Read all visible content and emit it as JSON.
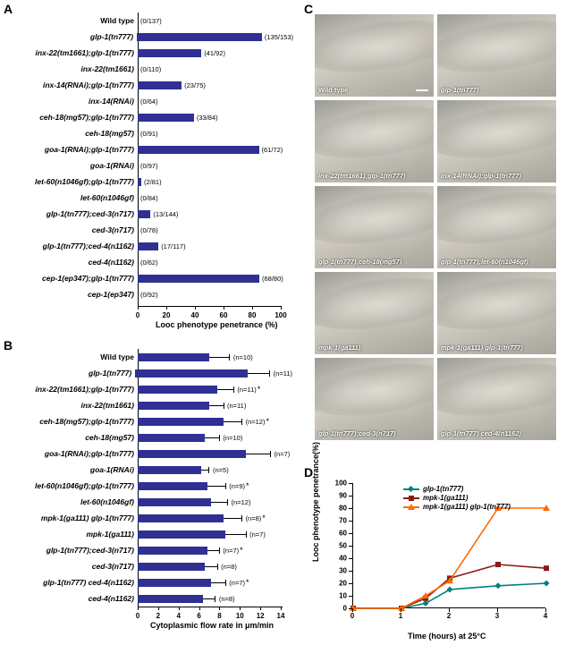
{
  "panel_labels": {
    "A": "A",
    "B": "B",
    "C": "C",
    "D": "D"
  },
  "colors": {
    "bar": "#2e3192",
    "axis": "#000000",
    "bg": "#ffffff",
    "series_glp1": "#008080",
    "series_mpk1": "#8b1a1a",
    "series_double": "#ff6a00"
  },
  "panelA": {
    "x_title": "Looc phenotype penetrance (%)",
    "xlim": [
      0,
      100
    ],
    "xtick_step": 20,
    "bar_color": "#2e3192",
    "rows": [
      {
        "label_html": "<span class='bold'>Wild type</span>",
        "value": 0,
        "count": "(0/137)"
      },
      {
        "label_html": "<span class='italic'>glp-1(tn777)</span>",
        "value": 88,
        "count": "(135/153)"
      },
      {
        "label_html": "<span class='italic'>inx-22(tm1661);glp-1(tn777)</span>",
        "value": 44.5,
        "count": "(41/92)"
      },
      {
        "label_html": "<span class='italic'>inx-22(tm1661)</span>",
        "value": 0,
        "count": "(0/110)"
      },
      {
        "label_html": "<span class='italic'>inx-14(RNAi);glp-1(tn777)</span>",
        "value": 30.7,
        "count": "(23/75)"
      },
      {
        "label_html": "<span class='italic'>inx-14(RNAi)</span>",
        "value": 0,
        "count": "(0/64)"
      },
      {
        "label_html": "<span class='italic'>ceh-18(mg57);glp-1(tn777)</span>",
        "value": 39.3,
        "count": "(33/84)"
      },
      {
        "label_html": "<span class='italic'>ceh-18(mg57)</span>",
        "value": 0,
        "count": "(0/91)"
      },
      {
        "label_html": "<span class='italic'>goa-1(RNAi);glp-1(tn777)</span>",
        "value": 84.7,
        "count": "(61/72)"
      },
      {
        "label_html": "<span class='italic'>goa-1(RNAi)</span>",
        "value": 0,
        "count": "(0/97)"
      },
      {
        "label_html": "<span class='italic'>let-60(n1046gf);glp-1(tn777)</span>",
        "value": 2.5,
        "count": "(2/81)"
      },
      {
        "label_html": "<span class='italic'>let-60(n1046gf)</span>",
        "value": 0,
        "count": "(0/84)"
      },
      {
        "label_html": "<span class='italic'>glp-1(tn777);ced-3(n717)</span>",
        "value": 9,
        "count": "(13/144)"
      },
      {
        "label_html": "<span class='italic'>ced-3(n717)</span>",
        "value": 0,
        "count": "(0/78)"
      },
      {
        "label_html": "<span class='italic'>glp-1(tn777);ced-4(n1162)</span>",
        "value": 14.5,
        "count": "(17/117)"
      },
      {
        "label_html": "<span class='italic'>ced-4(n1162)</span>",
        "value": 0,
        "count": "(0/62)"
      },
      {
        "label_html": "<span class='italic'>cep-1(ep347);glp-1(tn777)</span>",
        "value": 85,
        "count": "(68/80)"
      },
      {
        "label_html": "<span class='italic'>cep-1(ep347)</span>",
        "value": 0,
        "count": "(0/92)"
      }
    ]
  },
  "panelB": {
    "x_title": "Cytoplasmic flow rate in μm/min",
    "xlim": [
      0,
      14
    ],
    "xtick_step": 2,
    "bar_color": "#2e3192",
    "rows": [
      {
        "label_html": "<span class='bold'>Wild type</span>",
        "value": 7.0,
        "err": 2.0,
        "n": "(n=10)",
        "star": ""
      },
      {
        "label_html": "<span class='italic'>glp-1(tn777)</span>",
        "value": 11.2,
        "err": 2.2,
        "n": "(n=11)",
        "star": ""
      },
      {
        "label_html": "<span class='italic'>inx-22(tm1661);glp-1(tn777)</span>",
        "value": 7.8,
        "err": 1.6,
        "n": "(n=11)",
        "star": "*"
      },
      {
        "label_html": "<span class='italic'>inx-22(tm1661)</span>",
        "value": 7.0,
        "err": 1.4,
        "n": "(n=11)",
        "star": ""
      },
      {
        "label_html": "<span class='italic'>ceh-18(mg57);glp-1(tn777)</span>",
        "value": 8.4,
        "err": 1.8,
        "n": "(n=12)",
        "star": "*"
      },
      {
        "label_html": "<span class='italic'>ceh-18(mg57)</span>",
        "value": 6.6,
        "err": 1.4,
        "n": "(n=10)",
        "star": ""
      },
      {
        "label_html": "<span class='italic'>goa-1(RNAi);glp-1(tn777)</span>",
        "value": 10.6,
        "err": 2.4,
        "n": "(n=7)",
        "star": ""
      },
      {
        "label_html": "<span class='italic'>goa-1(RNAi)</span>",
        "value": 6.2,
        "err": 0.8,
        "n": "(n=5)",
        "star": ""
      },
      {
        "label_html": "<span class='italic'>let-60(n1046gf);glp-1(tn777)</span>",
        "value": 6.8,
        "err": 1.8,
        "n": "(n=9)",
        "star": "*"
      },
      {
        "label_html": "<span class='italic'>let-60(n1046gf)</span>",
        "value": 7.2,
        "err": 1.6,
        "n": "(n=12)",
        "star": ""
      },
      {
        "label_html": "<span class='italic'>mpk-1(ga111) glp-1(tn777)</span>",
        "value": 8.4,
        "err": 1.8,
        "n": "(n=8)",
        "star": "*"
      },
      {
        "label_html": "<span class='italic'>mpk-1(ga111)</span>",
        "value": 8.6,
        "err": 2.0,
        "n": "(n=7)",
        "star": ""
      },
      {
        "label_html": "<span class='italic'>glp-1(tn777);ced-3(n717)</span>",
        "value": 6.8,
        "err": 1.2,
        "n": "(n=7)",
        "star": "*"
      },
      {
        "label_html": "<span class='italic'>ced-3(n717)</span>",
        "value": 6.6,
        "err": 1.2,
        "n": "(n=8)",
        "star": ""
      },
      {
        "label_html": "<span class='italic'>glp-1(tn777) ced-4(n1162)</span>",
        "value": 7.2,
        "err": 1.4,
        "n": "(n=7)",
        "star": "*"
      },
      {
        "label_html": "<span class='italic'>ced-4(n1162)</span>",
        "value": 6.4,
        "err": 1.2,
        "n": "(n=8)",
        "star": ""
      }
    ]
  },
  "panelC": {
    "images": [
      [
        {
          "label": "Wild type",
          "normal": true,
          "scalebar": true
        },
        {
          "label": "glp-1(tn777)"
        }
      ],
      [
        {
          "label": "inx-22(tm1661);glp-1(tn777)"
        },
        {
          "label": "inx-14(RNAi);glp-1(tn777)"
        }
      ],
      [
        {
          "label": "glp-1(tn777);ceh-18(mg57)"
        },
        {
          "label": "glp-1(tn777);let-60(n1046gf)"
        }
      ],
      [
        {
          "label": "mpk-1(ga111)"
        },
        {
          "label": "mpk-1(ga111) glp-1(tn777)"
        }
      ],
      [
        {
          "label": "glp-1(tn777);ced-3(n717)"
        },
        {
          "label": "glp-1(tn777) ced-4(n1162)"
        }
      ]
    ]
  },
  "panelD": {
    "x_title": "Time (hours) at 25°C",
    "y_title": "Looc phenotype penetrance(%)",
    "xlim": [
      0,
      4
    ],
    "ylim": [
      0,
      100
    ],
    "ytick_step": 10,
    "xtick_step": 1,
    "series": [
      {
        "name": "glp-1(tn777)",
        "color": "#008080",
        "marker": "diamond",
        "points": [
          [
            0,
            0
          ],
          [
            1,
            0
          ],
          [
            1.5,
            4
          ],
          [
            2,
            15
          ],
          [
            3,
            18
          ],
          [
            4,
            20
          ]
        ]
      },
      {
        "name": "mpk-1(ga111)",
        "color": "#8b1a1a",
        "marker": "square",
        "points": [
          [
            0,
            0
          ],
          [
            1,
            0
          ],
          [
            1.5,
            8
          ],
          [
            2,
            24
          ],
          [
            3,
            35
          ],
          [
            4,
            32
          ]
        ]
      },
      {
        "name": "mpk-1(ga111) glp-1(tn777)",
        "color": "#ff6a00",
        "marker": "triangle",
        "points": [
          [
            0,
            0
          ],
          [
            1,
            0
          ],
          [
            1.5,
            10
          ],
          [
            2,
            22
          ],
          [
            3,
            80
          ],
          [
            4,
            80
          ]
        ]
      }
    ]
  }
}
